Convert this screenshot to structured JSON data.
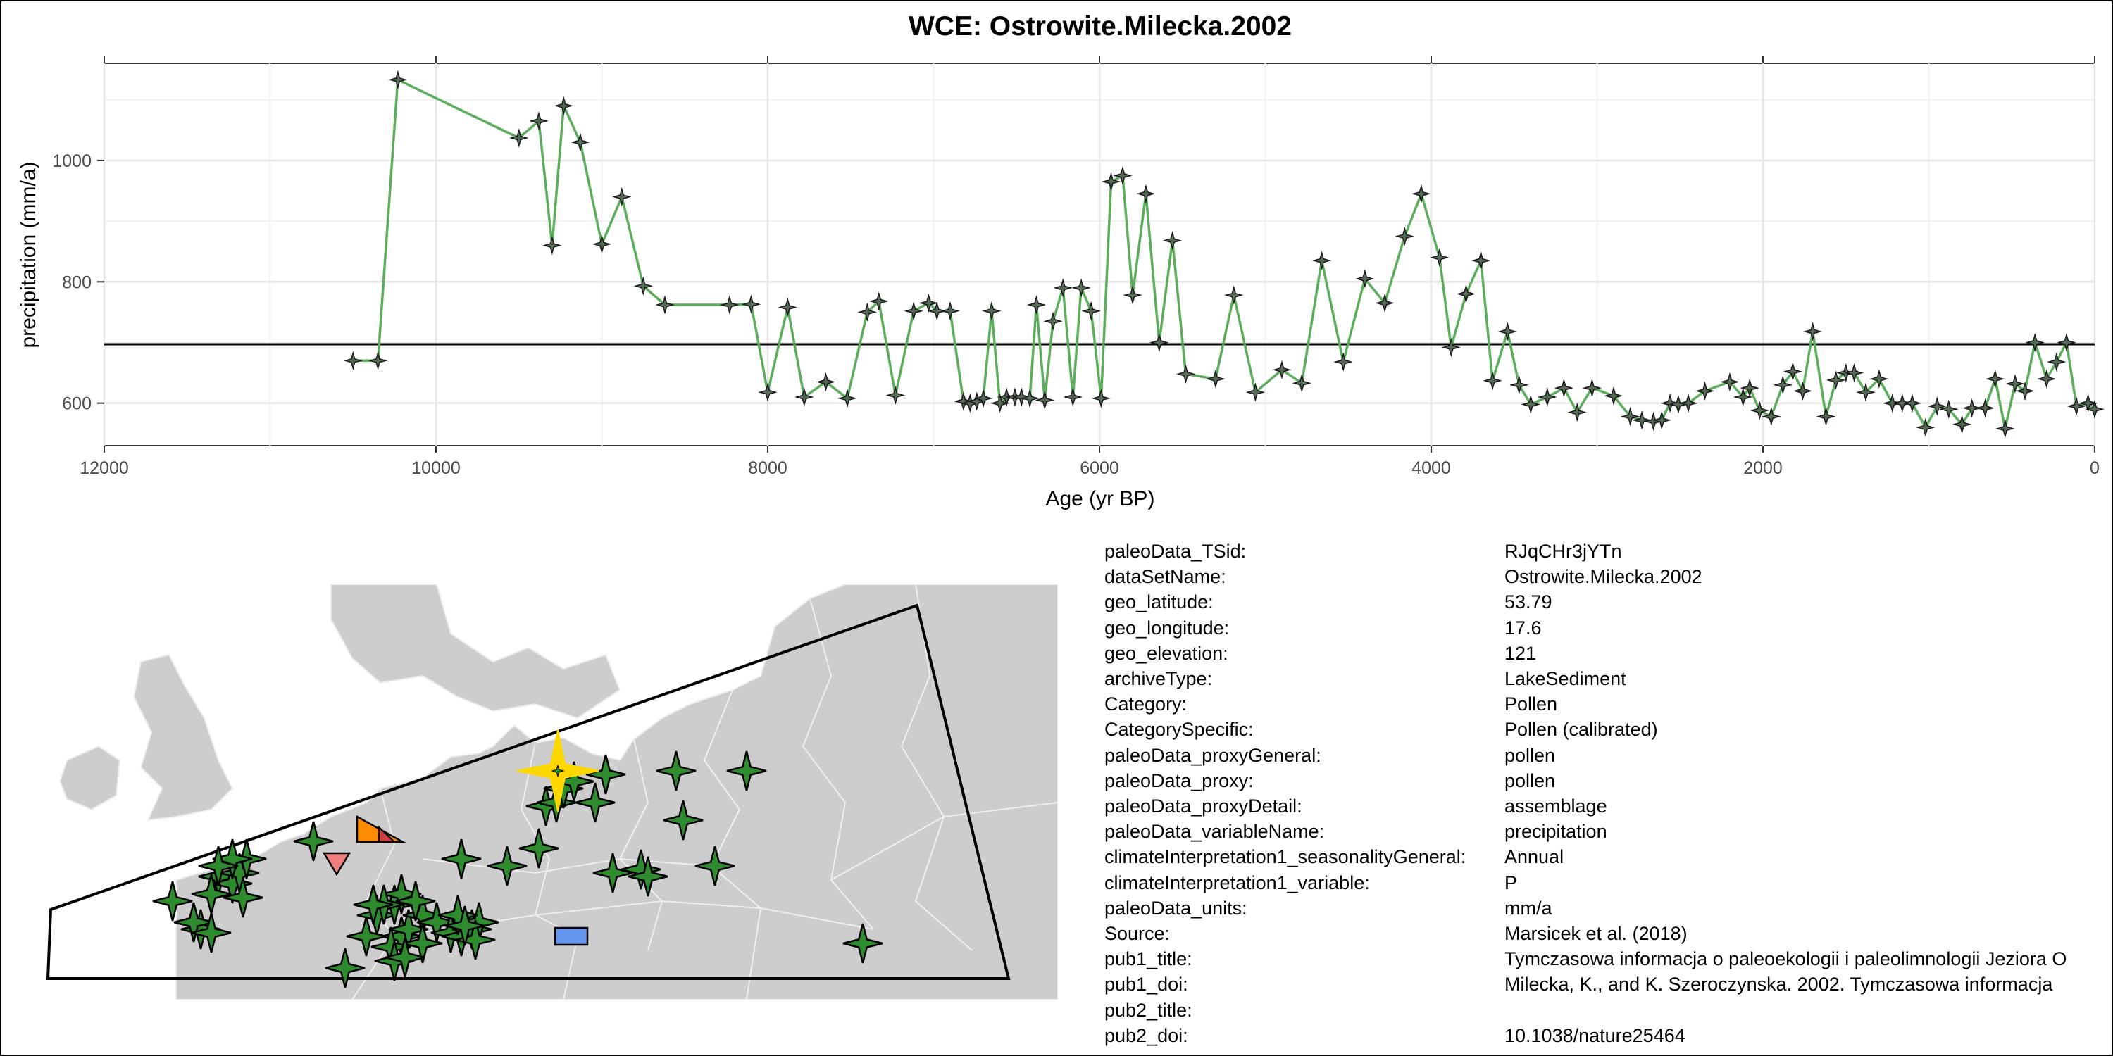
{
  "chart_data": {
    "type": "line",
    "title": "WCE: Ostrowite.Milecka.2002",
    "xlabel": "Age (yr BP)",
    "ylabel": "precipitation (mm/a)",
    "xlim": [
      12000,
      0
    ],
    "ylim": [
      530,
      1160
    ],
    "x_reversed": true,
    "xticks": [
      12000,
      10000,
      8000,
      6000,
      4000,
      2000,
      0
    ],
    "yticks": [
      600,
      800,
      1000
    ],
    "grid": true,
    "reference_line": 697,
    "colors": {
      "line": "#5cae5c",
      "marker": "#2f4f2f",
      "reference": "#000000"
    },
    "series": [
      {
        "x": [
          10500,
          10350,
          10230,
          9500,
          9380,
          9300,
          9230,
          9130,
          9000,
          8880,
          8750,
          8620,
          8230,
          8100,
          8000,
          7880,
          7780,
          7650,
          7520,
          7400,
          7330,
          7230,
          7120,
          7030,
          6980,
          6900,
          6820,
          6780,
          6740,
          6700,
          6650,
          6600,
          6560,
          6510,
          6470,
          6420,
          6380,
          6330,
          6280,
          6220,
          6160,
          6110,
          6050,
          5990,
          5930,
          5860,
          5800,
          5720,
          5640,
          5560,
          5480,
          5300,
          5190,
          5060,
          4900,
          4780,
          4660,
          4530,
          4400,
          4280,
          4160,
          4060,
          3950,
          3880,
          3790,
          3700,
          3630,
          3540,
          3470,
          3400,
          3300,
          3200,
          3120,
          3030,
          2900,
          2800,
          2730,
          2660,
          2610,
          2560,
          2510,
          2450,
          2350,
          2200,
          2120,
          2080,
          2020,
          1950,
          1880,
          1820,
          1760,
          1700,
          1620,
          1560,
          1500,
          1450,
          1380,
          1300,
          1220,
          1160,
          1100,
          1020,
          950,
          880,
          800,
          740,
          660,
          600,
          540,
          480,
          420,
          360,
          290,
          230,
          170,
          110,
          40,
          0
        ],
        "y": [
          670,
          670,
          1133,
          1037,
          1065,
          860,
          1090,
          1030,
          862,
          940,
          793,
          762,
          762,
          763,
          618,
          758,
          610,
          635,
          608,
          750,
          768,
          613,
          752,
          765,
          752,
          752,
          603,
          600,
          603,
          608,
          752,
          600,
          610,
          610,
          610,
          608,
          762,
          605,
          735,
          790,
          610,
          790,
          752,
          608,
          965,
          975,
          778,
          945,
          700,
          868,
          648,
          640,
          778,
          618,
          655,
          633,
          835,
          668,
          805,
          765,
          875,
          945,
          840,
          692,
          780,
          835,
          637,
          718,
          630,
          598,
          610,
          625,
          585,
          625,
          612,
          578,
          572,
          570,
          572,
          600,
          598,
          600,
          620,
          635,
          610,
          625,
          588,
          578,
          630,
          652,
          620,
          718,
          578,
          638,
          650,
          650,
          618,
          640,
          600,
          600,
          600,
          560,
          595,
          590,
          565,
          592,
          592,
          640,
          558,
          632,
          620,
          700,
          640,
          668,
          700,
          595,
          600,
          590
        ]
      }
    ]
  },
  "map": {
    "colors": {
      "land": "#cdcdcd",
      "background": "#ffffff",
      "borders": "#eeeeee",
      "marker_default": "#2e8b2e",
      "marker_highlight": "#ffd700",
      "marker_orange": "#ff8c00",
      "marker_pink": "#f08080",
      "marker_blue": "#6495ed"
    },
    "marker_shapes": [
      "star4",
      "triangle-right",
      "triangle-down",
      "rectangle"
    ]
  },
  "metadata": [
    {
      "key": "paleoData_TSid:",
      "value": "RJqCHr3jYTn"
    },
    {
      "key": "dataSetName:",
      "value": "Ostrowite.Milecka.2002"
    },
    {
      "key": "geo_latitude:",
      "value": "53.79"
    },
    {
      "key": "geo_longitude:",
      "value": "17.6"
    },
    {
      "key": "geo_elevation:",
      "value": "121"
    },
    {
      "key": "archiveType:",
      "value": "LakeSediment"
    },
    {
      "key": "Category:",
      "value": "Pollen"
    },
    {
      "key": "CategorySpecific:",
      "value": "Pollen (calibrated)"
    },
    {
      "key": "paleoData_proxyGeneral:",
      "value": "pollen"
    },
    {
      "key": "paleoData_proxy:",
      "value": "pollen"
    },
    {
      "key": "paleoData_proxyDetail:",
      "value": "assemblage"
    },
    {
      "key": "paleoData_variableName:",
      "value": "precipitation"
    },
    {
      "key": "climateInterpretation1_seasonalityGeneral:",
      "value": "Annual"
    },
    {
      "key": "climateInterpretation1_variable:",
      "value": "P"
    },
    {
      "key": "paleoData_units:",
      "value": "mm/a"
    },
    {
      "key": "Source:",
      "value": "Marsicek et al. (2018)"
    },
    {
      "key": "pub1_title:",
      "value": "Tymczasowa informacja o paleoekologii i paleolimnologii Jeziora O"
    },
    {
      "key": "pub1_doi:",
      "value": "Milecka, K., and K. Szeroczynska. 2002. Tymczasowa informacja"
    },
    {
      "key": "pub2_title:",
      "value": ""
    },
    {
      "key": "pub2_doi:",
      "value": "10.1038/nature25464"
    }
  ]
}
